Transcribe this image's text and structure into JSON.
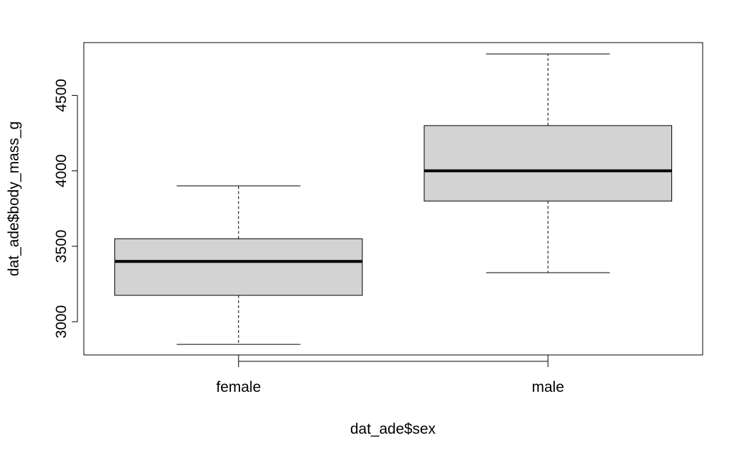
{
  "chart_data": {
    "type": "boxplot",
    "title": "",
    "xlabel": "dat_ade$sex",
    "ylabel": "dat_ade$body_mass_g",
    "categories": [
      "female",
      "male"
    ],
    "boxes": [
      {
        "category": "female",
        "whisker_low": 2850,
        "q1": 3175,
        "median": 3400,
        "q3": 3550,
        "whisker_high": 3900
      },
      {
        "category": "male",
        "whisker_low": 3325,
        "q1": 3800,
        "median": 4000,
        "q3": 4300,
        "whisker_high": 4775
      }
    ],
    "y_ticks": [
      3000,
      3500,
      4000,
      4500
    ],
    "ylim": [
      2780,
      4850
    ],
    "box_fill": "#d3d3d3",
    "line_color": "#000000",
    "grid": false,
    "legend": "none"
  }
}
